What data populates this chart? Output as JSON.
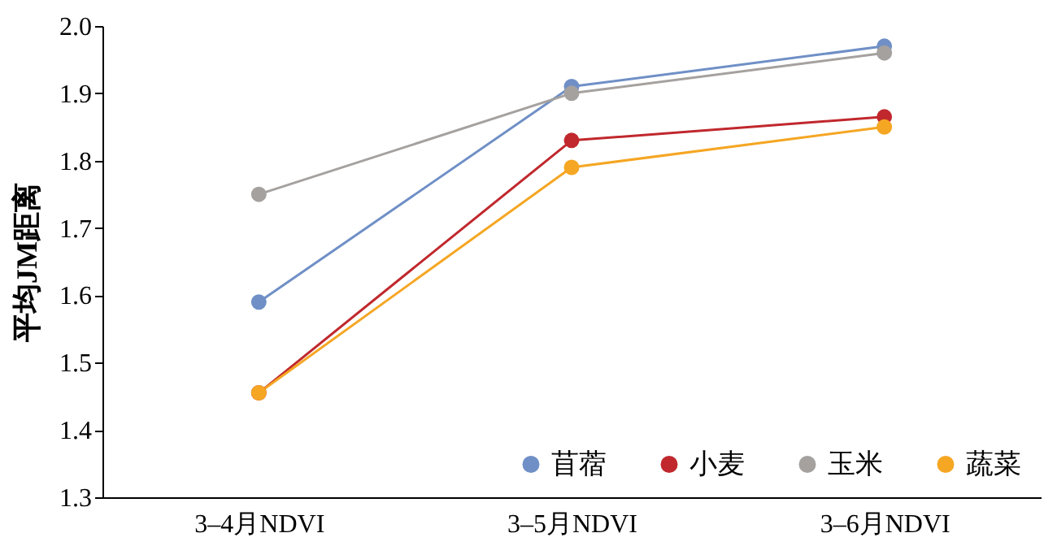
{
  "chart_data": {
    "type": "line",
    "ylabel": "平均JM距离",
    "categories": [
      "3–4月NDVI",
      "3–5月NDVI",
      "3–6月NDVI"
    ],
    "series": [
      {
        "name": "苜蓿",
        "color": "#6f8fc6",
        "values": [
          1.59,
          1.91,
          1.97
        ]
      },
      {
        "name": "小麦",
        "color": "#c0282d",
        "values": [
          1.455,
          1.83,
          1.865
        ]
      },
      {
        "name": "玉米",
        "color": "#a5a19f",
        "values": [
          1.75,
          1.9,
          1.96
        ]
      },
      {
        "name": "蔬菜",
        "color": "#f5a623",
        "values": [
          1.455,
          1.79,
          1.85
        ]
      }
    ],
    "ylim": [
      1.3,
      2.0
    ],
    "yticks": [
      1.3,
      1.4,
      1.5,
      1.6,
      1.7,
      1.8,
      1.9,
      {
        "value": 2.0,
        "label": "2.0"
      }
    ],
    "grid": false,
    "legend": "bottom right",
    "marker": "circle",
    "line_style": "solid"
  }
}
